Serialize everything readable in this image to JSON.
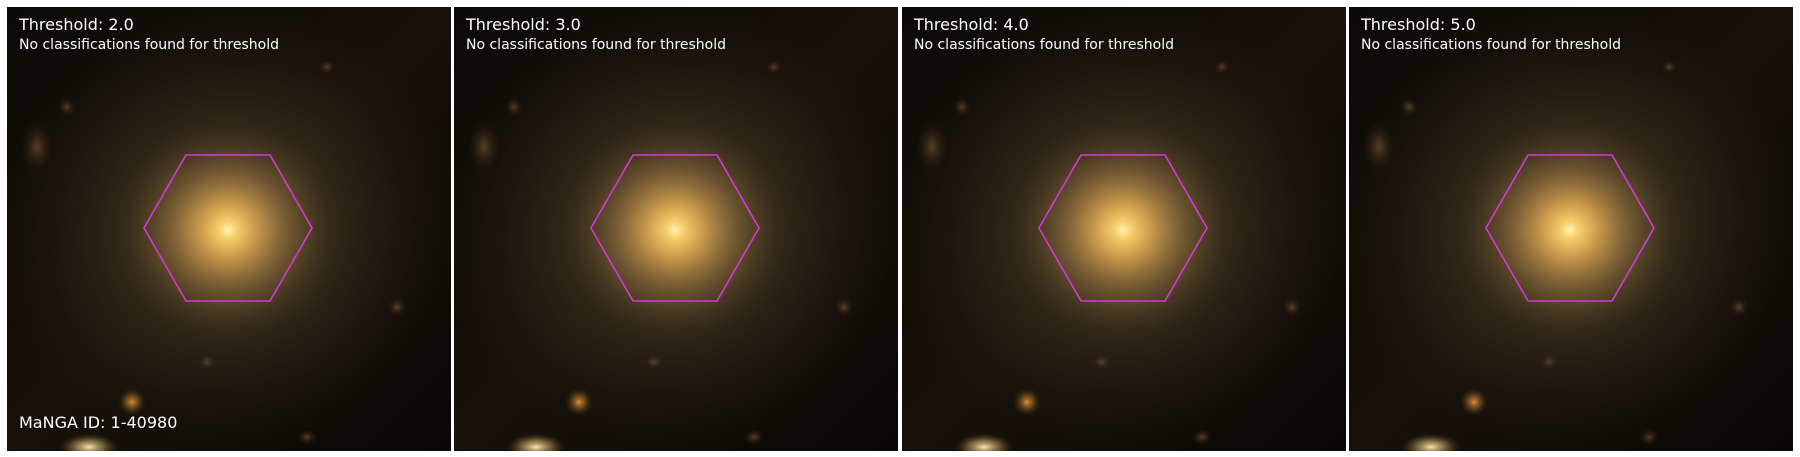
{
  "figure": {
    "manga_id": "MaNGA ID: 1-40980",
    "hexagon_color": "#d63ad6",
    "panels": [
      {
        "threshold": "Threshold: 2.0",
        "message": "No classifications found for threshold"
      },
      {
        "threshold": "Threshold: 3.0",
        "message": "No classifications found for threshold"
      },
      {
        "threshold": "Threshold: 4.0",
        "message": "No classifications found for threshold"
      },
      {
        "threshold": "Threshold: 5.0",
        "message": "No classifications found for threshold"
      }
    ]
  }
}
